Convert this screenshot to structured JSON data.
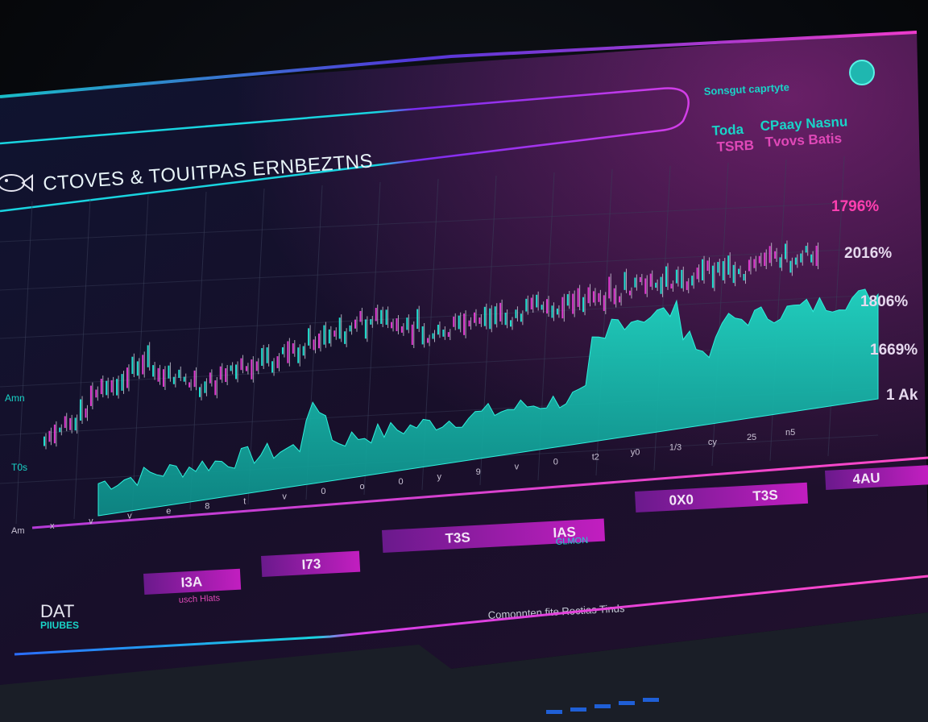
{
  "header": {
    "title": "CTOVES & TOUITPAS ERNBEZTNS"
  },
  "top_right": {
    "heading": "Sonsgut caprtyte",
    "stats": [
      {
        "label": "Toda",
        "value": "CPaay Nasnu"
      },
      {
        "label": "TSRB",
        "value": "Tvovs Batis"
      }
    ]
  },
  "y_axis_right": [
    "1796%",
    "2016%",
    "1806%",
    "1669%",
    "1 Ak"
  ],
  "y_axis_left": [
    "Amn",
    "T0s"
  ],
  "x_axis_ticks": [
    "Am",
    "x",
    "v",
    "v",
    "e",
    "8",
    "t",
    "v",
    "0",
    "o",
    "0",
    "y",
    "9",
    "v",
    "0",
    "t2",
    "y0",
    "1/3",
    "cy",
    "25",
    "n5"
  ],
  "range_tags": [
    "I3A",
    "I73",
    "T3S",
    "IAS",
    "0X0",
    "T3S",
    "4AU"
  ],
  "range_tag_sub": [
    "usch Hlats",
    "GLMON"
  ],
  "bottom_left": {
    "title": "DAT",
    "subtitle": "PIIUBES"
  },
  "bottom_caption": "Comonnten fite Roctias Tinds",
  "colors": {
    "teal": "#19d4c8",
    "magenta": "#d22ad2",
    "pink": "#ff3fb0",
    "panel": "#140f22"
  }
}
